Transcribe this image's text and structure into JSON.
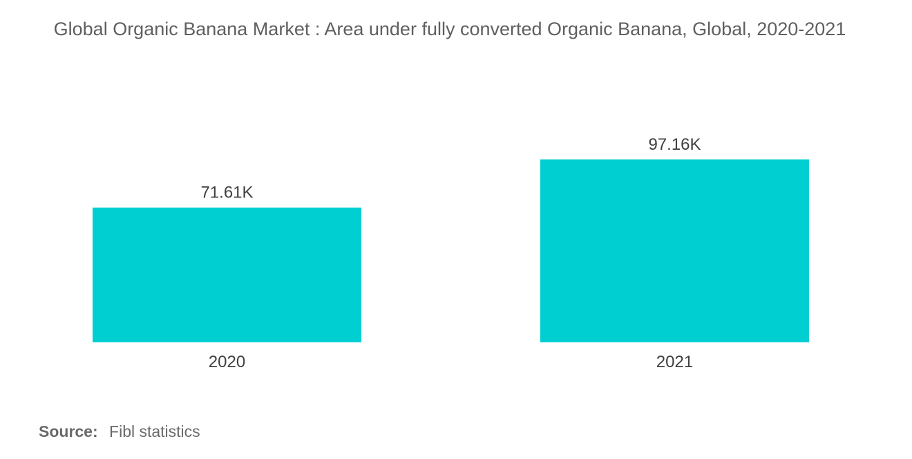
{
  "chart_data": {
    "type": "bar",
    "title": "Global Organic Banana Market : Area under fully converted Organic Banana, Global, 2020-2021",
    "categories": [
      "2020",
      "2021"
    ],
    "values": [
      71.61,
      97.16
    ],
    "value_labels": [
      "71.61K",
      "97.16K"
    ],
    "xlabel": "",
    "ylabel": "",
    "ylim": [
      0,
      100
    ],
    "grid": false,
    "bar_color": "#00cfd2"
  },
  "source": {
    "label": "Source:",
    "text": "Fibl statistics"
  }
}
